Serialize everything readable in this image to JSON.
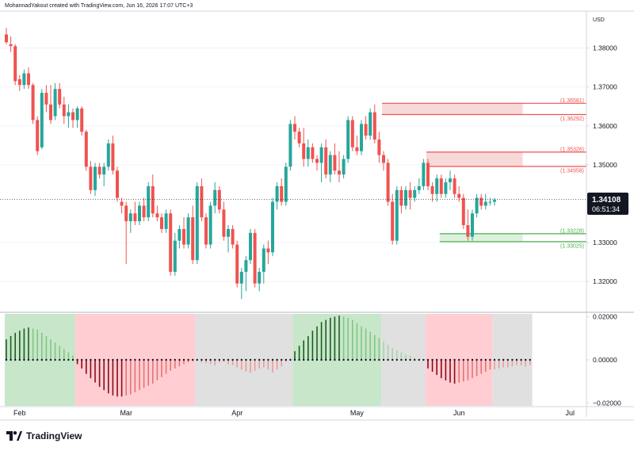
{
  "header": {
    "attribution": "MohannadYakout created with TradingView.com, Jun 16, 2026 17:07 UTC+3"
  },
  "currency": "USD",
  "footer": {
    "brand": "TradingView"
  },
  "colors": {
    "up": "#26a69a",
    "down": "#ef5350",
    "red_zone_border": "#ef5350",
    "red_zone_fill": "#f7d5d5",
    "green_zone_border": "#4caf50",
    "green_zone_fill": "#d9f0d9",
    "label_dark": "#131722",
    "osc_green_bg": "#c8e6c9",
    "osc_red_bg": "#ffcdd2",
    "osc_grey_bg": "#e0e0e0"
  },
  "price_badge": {
    "price": "1.34108",
    "countdown": "06:51:34"
  },
  "chart_data": [
    {
      "type": "candlestick",
      "title": "",
      "xlabel": "",
      "ylabel": "",
      "ylim": [
        1.3125,
        1.3895
      ],
      "x_ticks": [
        "Feb",
        "Mar",
        "Apr",
        "May",
        "Jun",
        "Jul"
      ],
      "y_ticks": [
        "1.38000",
        "1.37000",
        "1.36000",
        "1.35000",
        "1.33000",
        "1.32000"
      ],
      "last_price": 1.34108,
      "candles": [
        [
          1.3835,
          1.3852,
          1.381,
          1.3815
        ],
        [
          1.381,
          1.383,
          1.379,
          1.3805
        ],
        [
          1.3805,
          1.381,
          1.3705,
          1.3715
        ],
        [
          1.372,
          1.373,
          1.369,
          1.3705
        ],
        [
          1.3705,
          1.3745,
          1.3695,
          1.3735
        ],
        [
          1.3735,
          1.375,
          1.3695,
          1.3705
        ],
        [
          1.3705,
          1.371,
          1.3605,
          1.3615
        ],
        [
          1.3615,
          1.3625,
          1.3525,
          1.3535
        ],
        [
          1.3545,
          1.3695,
          1.354,
          1.3685
        ],
        [
          1.3685,
          1.3705,
          1.3635,
          1.3655
        ],
        [
          1.3655,
          1.3705,
          1.3605,
          1.3615
        ],
        [
          1.3625,
          1.371,
          1.3615,
          1.3695
        ],
        [
          1.3695,
          1.371,
          1.3645,
          1.3655
        ],
        [
          1.3655,
          1.3675,
          1.3605,
          1.3625
        ],
        [
          1.3625,
          1.3655,
          1.3595,
          1.3635
        ],
        [
          1.3635,
          1.3645,
          1.3595,
          1.3615
        ],
        [
          1.3615,
          1.365,
          1.3595,
          1.3645
        ],
        [
          1.3645,
          1.365,
          1.3575,
          1.3585
        ],
        [
          1.3585,
          1.359,
          1.3485,
          1.3495
        ],
        [
          1.3495,
          1.351,
          1.3425,
          1.3435
        ],
        [
          1.3435,
          1.3505,
          1.342,
          1.3495
        ],
        [
          1.3495,
          1.3505,
          1.3465,
          1.3475
        ],
        [
          1.3475,
          1.3505,
          1.3445,
          1.3495
        ],
        [
          1.3495,
          1.3565,
          1.3485,
          1.3555
        ],
        [
          1.3555,
          1.3575,
          1.3475,
          1.3485
        ],
        [
          1.3485,
          1.3495,
          1.3405,
          1.3415
        ],
        [
          1.3405,
          1.3415,
          1.3375,
          1.3395
        ],
        [
          1.3395,
          1.3405,
          1.3245,
          1.3355
        ],
        [
          1.3355,
          1.3385,
          1.3325,
          1.3375
        ],
        [
          1.3375,
          1.3405,
          1.3345,
          1.3355
        ],
        [
          1.3355,
          1.3405,
          1.3345,
          1.3395
        ],
        [
          1.3395,
          1.3415,
          1.3355,
          1.3365
        ],
        [
          1.3365,
          1.3455,
          1.3355,
          1.3445
        ],
        [
          1.3445,
          1.3475,
          1.3365,
          1.3375
        ],
        [
          1.3375,
          1.3395,
          1.3355,
          1.3365
        ],
        [
          1.3365,
          1.3375,
          1.3325,
          1.3335
        ],
        [
          1.3335,
          1.3385,
          1.3325,
          1.3375
        ],
        [
          1.3375,
          1.3385,
          1.3215,
          1.3225
        ],
        [
          1.3225,
          1.3325,
          1.3215,
          1.3305
        ],
        [
          1.3305,
          1.3345,
          1.3285,
          1.3335
        ],
        [
          1.3335,
          1.3365,
          1.3285,
          1.3295
        ],
        [
          1.3295,
          1.3375,
          1.3285,
          1.3365
        ],
        [
          1.3365,
          1.3395,
          1.3245,
          1.3255
        ],
        [
          1.3255,
          1.3455,
          1.3245,
          1.3445
        ],
        [
          1.3445,
          1.3465,
          1.3355,
          1.3365
        ],
        [
          1.3365,
          1.3375,
          1.3285,
          1.3295
        ],
        [
          1.3295,
          1.3405,
          1.3285,
          1.3395
        ],
        [
          1.3395,
          1.3455,
          1.3375,
          1.3435
        ],
        [
          1.3435,
          1.3445,
          1.3375,
          1.3385
        ],
        [
          1.3385,
          1.3405,
          1.3305,
          1.3315
        ],
        [
          1.3315,
          1.3345,
          1.3275,
          1.3335
        ],
        [
          1.3335,
          1.3345,
          1.3285,
          1.3295
        ],
        [
          1.3295,
          1.3305,
          1.3185,
          1.3195
        ],
        [
          1.3195,
          1.3235,
          1.3155,
          1.3225
        ],
        [
          1.3225,
          1.3265,
          1.3175,
          1.3255
        ],
        [
          1.3255,
          1.3335,
          1.3245,
          1.3325
        ],
        [
          1.3325,
          1.3335,
          1.3185,
          1.3195
        ],
        [
          1.3195,
          1.3235,
          1.3175,
          1.3225
        ],
        [
          1.3225,
          1.3295,
          1.3195,
          1.3285
        ],
        [
          1.3285,
          1.3305,
          1.3245,
          1.3275
        ],
        [
          1.3275,
          1.3415,
          1.3265,
          1.3405
        ],
        [
          1.3405,
          1.3455,
          1.3385,
          1.3445
        ],
        [
          1.3445,
          1.3465,
          1.3395,
          1.3405
        ],
        [
          1.3405,
          1.3505,
          1.3395,
          1.3495
        ],
        [
          1.3495,
          1.3615,
          1.3485,
          1.3605
        ],
        [
          1.3605,
          1.3625,
          1.3565,
          1.3585
        ],
        [
          1.3585,
          1.3595,
          1.3545,
          1.3555
        ],
        [
          1.3555,
          1.3595,
          1.3495,
          1.3515
        ],
        [
          1.3515,
          1.3565,
          1.3495,
          1.3545
        ],
        [
          1.3545,
          1.3555,
          1.3505,
          1.3515
        ],
        [
          1.3515,
          1.3525,
          1.3485,
          1.3505
        ],
        [
          1.3505,
          1.3555,
          1.3455,
          1.3545
        ],
        [
          1.3545,
          1.3565,
          1.3465,
          1.3475
        ],
        [
          1.3475,
          1.3535,
          1.3455,
          1.3525
        ],
        [
          1.3525,
          1.3555,
          1.3475,
          1.3485
        ],
        [
          1.3485,
          1.3535,
          1.3455,
          1.3475
        ],
        [
          1.3475,
          1.3525,
          1.3465,
          1.3515
        ],
        [
          1.3515,
          1.3625,
          1.3505,
          1.3615
        ],
        [
          1.3615,
          1.3625,
          1.3535,
          1.3545
        ],
        [
          1.3545,
          1.3575,
          1.3525,
          1.3535
        ],
        [
          1.3535,
          1.3615,
          1.3525,
          1.3605
        ],
        [
          1.3605,
          1.3625,
          1.3565,
          1.3575
        ],
        [
          1.3575,
          1.3645,
          1.3565,
          1.3635
        ],
        [
          1.3635,
          1.3655,
          1.3555,
          1.3565
        ],
        [
          1.3565,
          1.3585,
          1.3505,
          1.3525
        ],
        [
          1.3525,
          1.3535,
          1.3485,
          1.3505
        ],
        [
          1.3505,
          1.3515,
          1.3395,
          1.3405
        ],
        [
          1.3405,
          1.3425,
          1.3295,
          1.3305
        ],
        [
          1.3305,
          1.3445,
          1.3295,
          1.3435
        ],
        [
          1.3435,
          1.3445,
          1.3375,
          1.3395
        ],
        [
          1.3395,
          1.3445,
          1.3385,
          1.3435
        ],
        [
          1.3435,
          1.3455,
          1.3385,
          1.3415
        ],
        [
          1.3415,
          1.3445,
          1.3405,
          1.3435
        ],
        [
          1.3435,
          1.3465,
          1.3425,
          1.3445
        ],
        [
          1.3445,
          1.3515,
          1.3435,
          1.3505
        ],
        [
          1.3505,
          1.3515,
          1.3435,
          1.3445
        ],
        [
          1.3445,
          1.3455,
          1.3405,
          1.3425
        ],
        [
          1.3425,
          1.3475,
          1.3405,
          1.3465
        ],
        [
          1.3465,
          1.3475,
          1.3415,
          1.3425
        ],
        [
          1.3425,
          1.3465,
          1.3415,
          1.3455
        ],
        [
          1.3455,
          1.3485,
          1.3435,
          1.3465
        ],
        [
          1.3465,
          1.3475,
          1.3415,
          1.3425
        ],
        [
          1.3425,
          1.3445,
          1.3405,
          1.3415
        ],
        [
          1.3415,
          1.3425,
          1.3335,
          1.3345
        ],
        [
          1.3345,
          1.3385,
          1.3305,
          1.3315
        ],
        [
          1.3315,
          1.3385,
          1.3305,
          1.3375
        ],
        [
          1.3375,
          1.3425,
          1.3365,
          1.3415
        ],
        [
          1.3415,
          1.3425,
          1.3385,
          1.3395
        ],
        [
          1.3395,
          1.3425,
          1.3385,
          1.3405
        ],
        [
          1.3405,
          1.3415,
          1.3395,
          1.3405
        ],
        [
          1.3405,
          1.3415,
          1.3395,
          1.341
        ]
      ],
      "zones": [
        {
          "upper": 1.36581,
          "lower": 1.36292,
          "color": "red",
          "start_index": 85,
          "end_index": 116,
          "upper_label": "(1.36581)",
          "lower_label": "(1.36292)"
        },
        {
          "upper": 1.35326,
          "lower": 1.34958,
          "color": "red",
          "start_index": 95,
          "end_index": 116,
          "upper_label": "(1.35326)",
          "lower_label": "(1.34958)"
        },
        {
          "upper": 1.33228,
          "lower": 1.33025,
          "color": "green",
          "start_index": 98,
          "end_index": 116,
          "upper_label": "(1.33228)",
          "lower_label": "(1.33025)"
        }
      ]
    },
    {
      "type": "bar",
      "title": "",
      "ylim": [
        -0.0213,
        0.0213
      ],
      "y_ticks": [
        "0.02000",
        "0.00000",
        "−0.02000"
      ],
      "regimes": [
        {
          "start_index": 0,
          "end_index": 15,
          "state": "green"
        },
        {
          "start_index": 16,
          "end_index": 42,
          "state": "red"
        },
        {
          "start_index": 43,
          "end_index": 64,
          "state": "grey"
        },
        {
          "start_index": 65,
          "end_index": 84,
          "state": "green"
        },
        {
          "start_index": 85,
          "end_index": 94,
          "state": "grey"
        },
        {
          "start_index": 95,
          "end_index": 109,
          "state": "red"
        },
        {
          "start_index": 110,
          "end_index": 118,
          "state": "grey"
        }
      ],
      "values": [
        0.0095,
        0.011,
        0.0125,
        0.0135,
        0.0145,
        0.015,
        0.0145,
        0.014,
        0.0125,
        0.011,
        0.0095,
        0.008,
        0.0065,
        0.005,
        0.0035,
        0.002,
        -0.002,
        -0.004,
        -0.0065,
        -0.0085,
        -0.0105,
        -0.0125,
        -0.014,
        -0.0155,
        -0.0165,
        -0.017,
        -0.017,
        -0.0165,
        -0.016,
        -0.015,
        -0.014,
        -0.013,
        -0.012,
        -0.011,
        -0.0095,
        -0.008,
        -0.0065,
        -0.005,
        -0.004,
        -0.003,
        -0.002,
        -0.001,
        -0.0005,
        -0.0005,
        -0.0012,
        -0.0015,
        -0.002,
        -0.0025,
        -0.0012,
        -0.001,
        -0.002,
        -0.0025,
        -0.0035,
        -0.0045,
        -0.0055,
        -0.006,
        -0.005,
        -0.004,
        -0.0035,
        -0.0045,
        -0.006,
        -0.0045,
        -0.003,
        -0.001,
        0.0005,
        0.004,
        0.0065,
        0.009,
        0.011,
        0.0135,
        0.0155,
        0.0175,
        0.0185,
        0.0195,
        0.02,
        0.0205,
        0.02,
        0.0195,
        0.0185,
        0.017,
        0.0155,
        0.0145,
        0.013,
        0.0115,
        0.01,
        0.0085,
        0.007,
        0.0055,
        0.0045,
        0.0035,
        0.0025,
        0.002,
        0.0012,
        0.0005,
        0.0002,
        -0.004,
        -0.0055,
        -0.007,
        -0.0085,
        -0.0095,
        -0.0105,
        -0.011,
        -0.0105,
        -0.01,
        -0.0095,
        -0.0085,
        -0.0075,
        -0.0065,
        -0.0055,
        -0.0045,
        -0.0045,
        -0.004,
        -0.0035,
        -0.0035,
        -0.003,
        -0.0025,
        -0.0025,
        -0.003,
        -0.0025
      ]
    }
  ]
}
